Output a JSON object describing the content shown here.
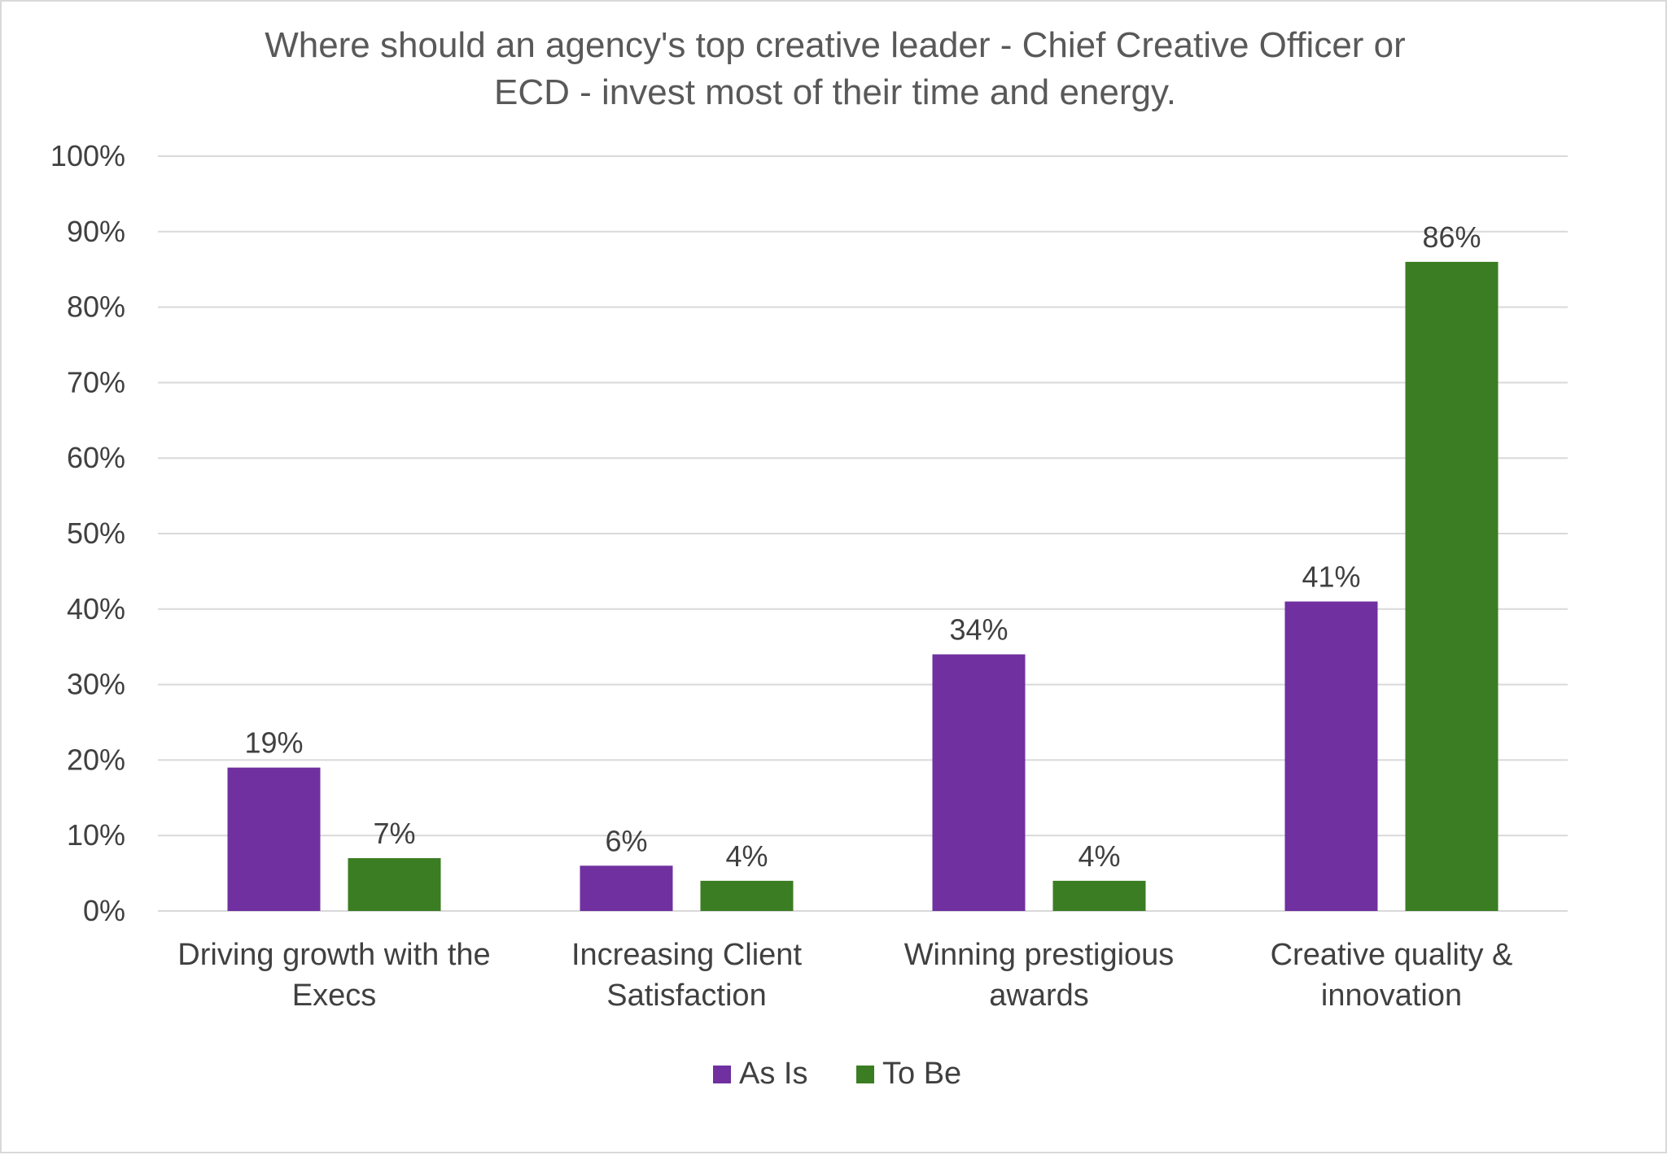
{
  "chart_data": {
    "type": "bar",
    "title_lines": [
      "Where should an agency's top creative leader - Chief Creative Officer or",
      "ECD - invest most of their time and energy."
    ],
    "categories": [
      [
        "Driving growth with the",
        "Execs"
      ],
      [
        "Increasing Client",
        "Satisfaction"
      ],
      [
        "Winning prestigious",
        "awards"
      ],
      [
        "Creative quality &",
        "innovation"
      ]
    ],
    "series": [
      {
        "name": "As Is",
        "color": "#7030a0",
        "values": [
          19,
          6,
          34,
          41
        ],
        "labels": [
          "19%",
          "6%",
          "34%",
          "41%"
        ]
      },
      {
        "name": "To Be",
        "color": "#3b7d23",
        "values": [
          7,
          4,
          4,
          86
        ],
        "labels": [
          "7%",
          "4%",
          "4%",
          "86%"
        ]
      }
    ],
    "ylim": [
      0,
      100
    ],
    "yticks": [
      0,
      10,
      20,
      30,
      40,
      50,
      60,
      70,
      80,
      90,
      100
    ],
    "ytick_labels": [
      "0%",
      "10%",
      "20%",
      "30%",
      "40%",
      "50%",
      "60%",
      "70%",
      "80%",
      "90%",
      "100%"
    ],
    "grid": true,
    "legend_position": "bottom",
    "xlabel": "",
    "ylabel": ""
  }
}
